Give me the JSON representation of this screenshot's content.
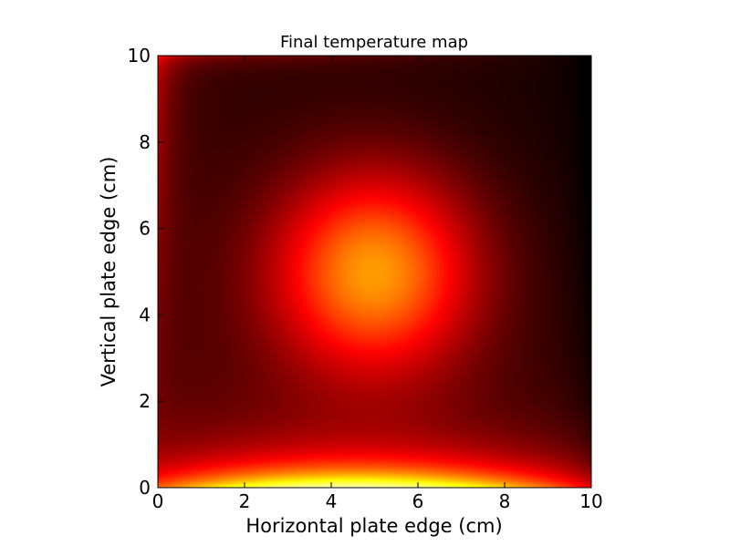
{
  "chart_data": {
    "type": "heatmap",
    "title": "Final temperature map",
    "xlabel": "Horizontal plate edge (cm)",
    "ylabel": "Vertical plate edge (cm)",
    "xlim": [
      0,
      10
    ],
    "ylim": [
      0,
      10
    ],
    "x_ticks": [
      "0",
      "2",
      "4",
      "6",
      "8",
      "10"
    ],
    "y_ticks": [
      "0",
      "2",
      "4",
      "6",
      "8",
      "10"
    ],
    "colormap": "hot",
    "colormap_stops": [
      "#000000",
      "#ff0000",
      "#ffff00",
      "#ffffff"
    ],
    "grid": false,
    "colorbar": false,
    "features": {
      "hot_spot_center": [
        5,
        5
      ],
      "hot_spot_level": 0.52,
      "bottom_edge_level": 0.82,
      "bottom_corner_levels": [
        0.45,
        0.18
      ],
      "left_edge_level": 0.22,
      "right_edge_level": 0.04,
      "top_edge_level": 0.13
    }
  }
}
